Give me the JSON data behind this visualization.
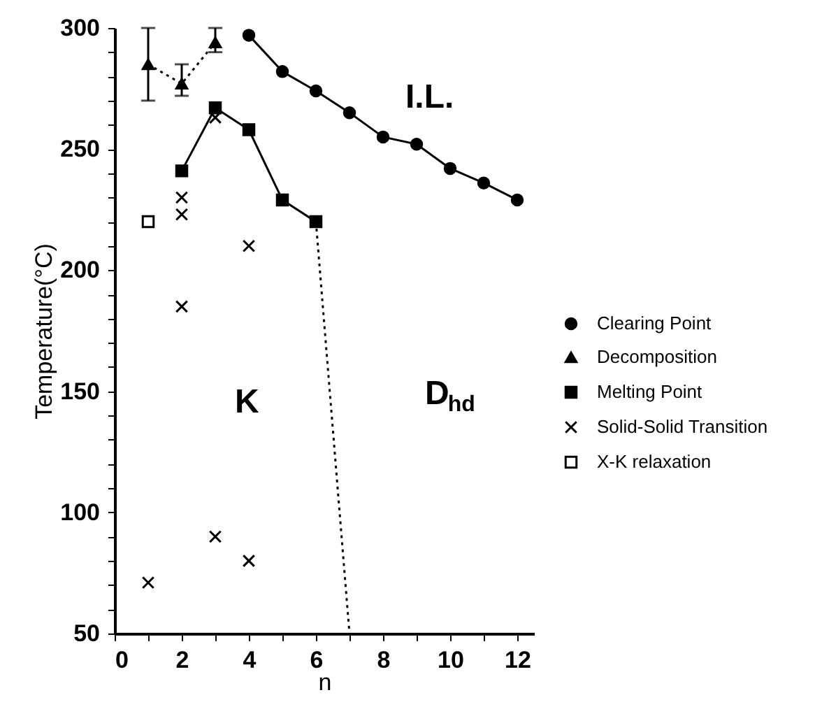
{
  "chart_data": {
    "type": "scatter",
    "xlabel": "n",
    "ylabel": "Temperature(°C)",
    "xlim": [
      0,
      12.5
    ],
    "xticks": [
      0,
      {
        "value": 1,
        "label": null
      },
      2,
      {
        "value": 3,
        "label": null
      },
      4,
      {
        "value": 5,
        "label": null
      },
      6,
      {
        "value": 7,
        "label": null
      },
      8,
      {
        "value": 9,
        "label": null
      },
      10,
      {
        "value": 11,
        "label": null
      },
      12
    ],
    "ylim": [
      50,
      300
    ],
    "yticks": [
      50,
      {
        "value": 60,
        "label": null
      },
      {
        "value": 70,
        "label": null
      },
      {
        "value": 80,
        "label": null
      },
      {
        "value": 90,
        "label": null
      },
      100,
      {
        "value": 110,
        "label": null
      },
      {
        "value": 120,
        "label": null
      },
      {
        "value": 130,
        "label": null
      },
      {
        "value": 140,
        "label": null
      },
      150,
      {
        "value": 160,
        "label": null
      },
      {
        "value": 170,
        "label": null
      },
      {
        "value": 180,
        "label": null
      },
      {
        "value": 190,
        "label": null
      },
      200,
      {
        "value": 210,
        "label": null
      },
      {
        "value": 220,
        "label": null
      },
      {
        "value": 230,
        "label": null
      },
      {
        "value": 240,
        "label": null
      },
      250,
      {
        "value": 260,
        "label": null
      },
      {
        "value": 270,
        "label": null
      },
      {
        "value": 280,
        "label": null
      },
      {
        "value": 290,
        "label": null
      },
      300
    ],
    "grid": false,
    "legend": "right",
    "series": [
      {
        "name": "Clearing Point",
        "type": "line",
        "marker": "circle",
        "line_style": "solid",
        "color": "#000000",
        "x": [
          4,
          5,
          6,
          7,
          8,
          9,
          10,
          11,
          12
        ],
        "values": [
          297,
          282,
          274,
          265,
          255,
          252,
          242,
          236,
          229
        ]
      },
      {
        "name": "Decomposition",
        "type": "line",
        "marker": "triangle",
        "line_style": "dotted",
        "color": "#000000",
        "x": [
          1,
          2,
          3
        ],
        "values": [
          285,
          277,
          294
        ],
        "errors": [
          [
            270,
            300
          ],
          [
            272,
            285
          ],
          [
            290,
            300
          ]
        ]
      },
      {
        "name": "Melting  Point",
        "type": "line",
        "marker": "square",
        "line_style": "solid",
        "color": "#000000",
        "x": [
          2,
          3,
          4,
          5,
          6
        ],
        "values": [
          241,
          267,
          258,
          229,
          220
        ]
      },
      {
        "name": "Solid-Solid Transition",
        "marker": "cross",
        "color": "#000000",
        "x": [
          1,
          2,
          2,
          2,
          3,
          3,
          4,
          4
        ],
        "values": [
          71,
          230,
          223,
          185,
          263,
          90,
          210,
          80
        ]
      },
      {
        "name": "X-K relaxation",
        "marker": "square-open",
        "color": "#000000",
        "x": [
          1
        ],
        "values": [
          220
        ]
      },
      {
        "type": "line",
        "marker": "none",
        "line_style": "dotted",
        "color": "#000000",
        "x": [
          6,
          7
        ],
        "values": [
          220,
          50
        ]
      }
    ],
    "annotations": [
      "I.L.",
      "K",
      "D$_{hd}$"
    ]
  }
}
